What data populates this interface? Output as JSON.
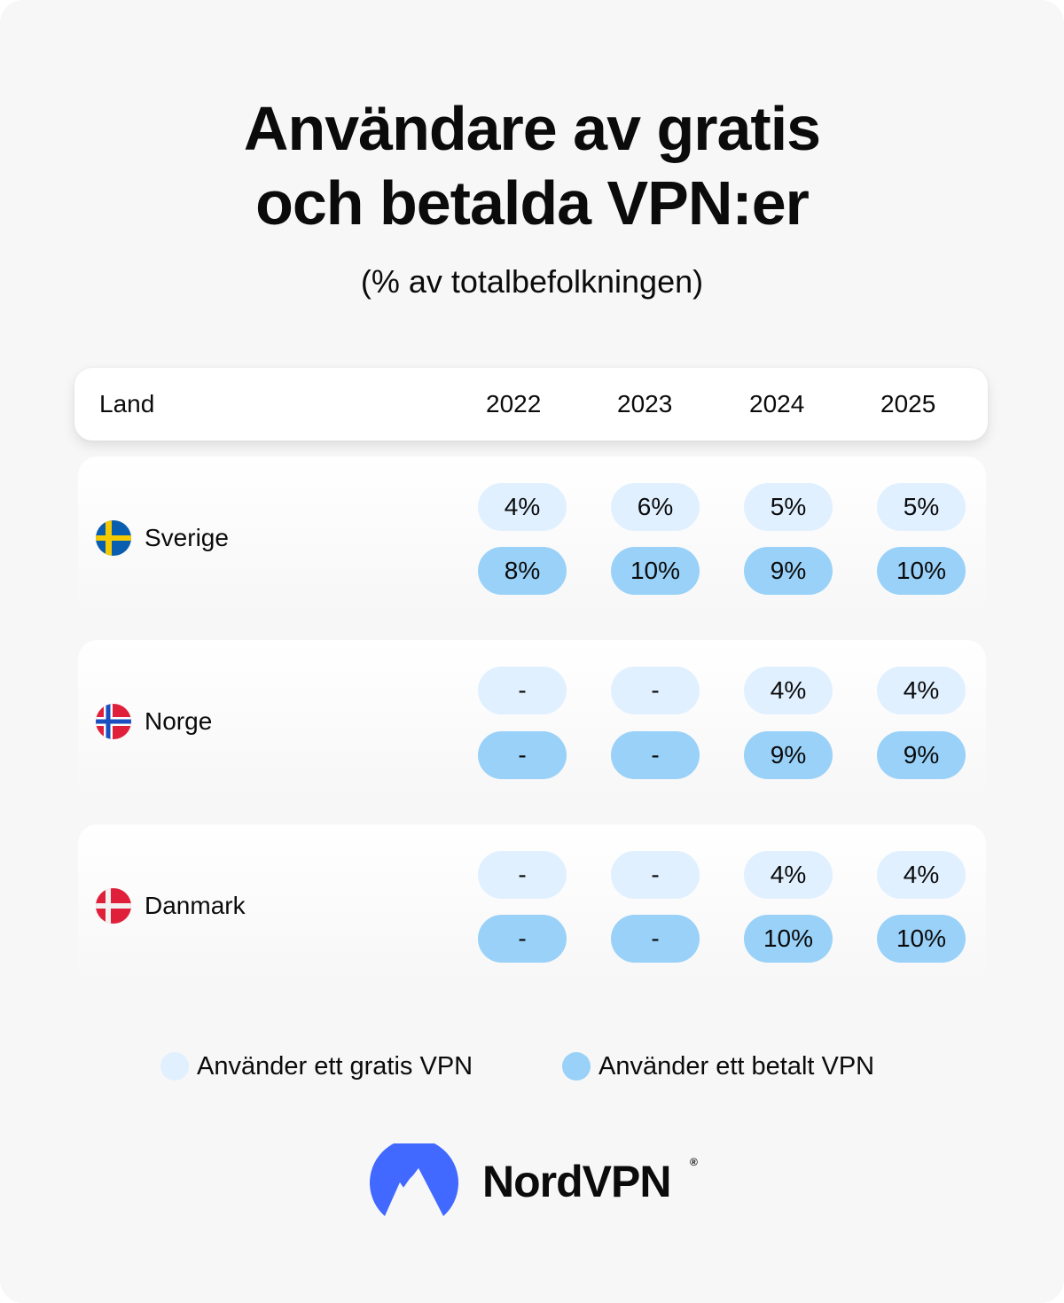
{
  "title_lines": [
    "Användare av gratis",
    "och betalda VPN:er"
  ],
  "subtitle": "(% av totalbefolkningen)",
  "table": {
    "header": {
      "country_label": "Land",
      "years": [
        "2022",
        "2023",
        "2024",
        "2025"
      ]
    },
    "rows": [
      {
        "country": "Sverige",
        "flag": "sweden-flag-icon",
        "free": [
          "4%",
          "6%",
          "5%",
          "5%"
        ],
        "paid": [
          "8%",
          "10%",
          "9%",
          "10%"
        ]
      },
      {
        "country": "Norge",
        "flag": "norway-flag-icon",
        "free": [
          "-",
          "-",
          "4%",
          "4%"
        ],
        "paid": [
          "-",
          "-",
          "9%",
          "9%"
        ]
      },
      {
        "country": "Danmark",
        "flag": "denmark-flag-icon",
        "free": [
          "-",
          "-",
          "4%",
          "4%"
        ],
        "paid": [
          "-",
          "-",
          "10%",
          "10%"
        ]
      }
    ]
  },
  "legend": [
    {
      "label": "Använder ett gratis VPN",
      "color": "#e0f0ff"
    },
    {
      "label": "Använder ett betalt VPN",
      "color": "#99d1f8"
    }
  ],
  "brand": {
    "name": "NordVPN",
    "registered": "®",
    "color": "#4169ff",
    "icon": "nordvpn-mountain-icon"
  },
  "chart_data": {
    "type": "table",
    "title": "Användare av gratis och betalda VPN:er",
    "subtitle": "(% av totalbefolkningen)",
    "columns": [
      "Land",
      "2022",
      "2023",
      "2024",
      "2025"
    ],
    "series": [
      {
        "name": "Använder ett gratis VPN",
        "color": "#e0f0ff",
        "values": {
          "Sverige": [
            4,
            6,
            5,
            5
          ],
          "Norge": [
            null,
            null,
            4,
            4
          ],
          "Danmark": [
            null,
            null,
            4,
            4
          ]
        }
      },
      {
        "name": "Använder ett betalt VPN",
        "color": "#99d1f8",
        "values": {
          "Sverige": [
            8,
            10,
            9,
            10
          ],
          "Norge": [
            null,
            null,
            9,
            9
          ],
          "Danmark": [
            null,
            null,
            10,
            10
          ]
        }
      }
    ],
    "unit": "%",
    "legend_position": "bottom"
  }
}
